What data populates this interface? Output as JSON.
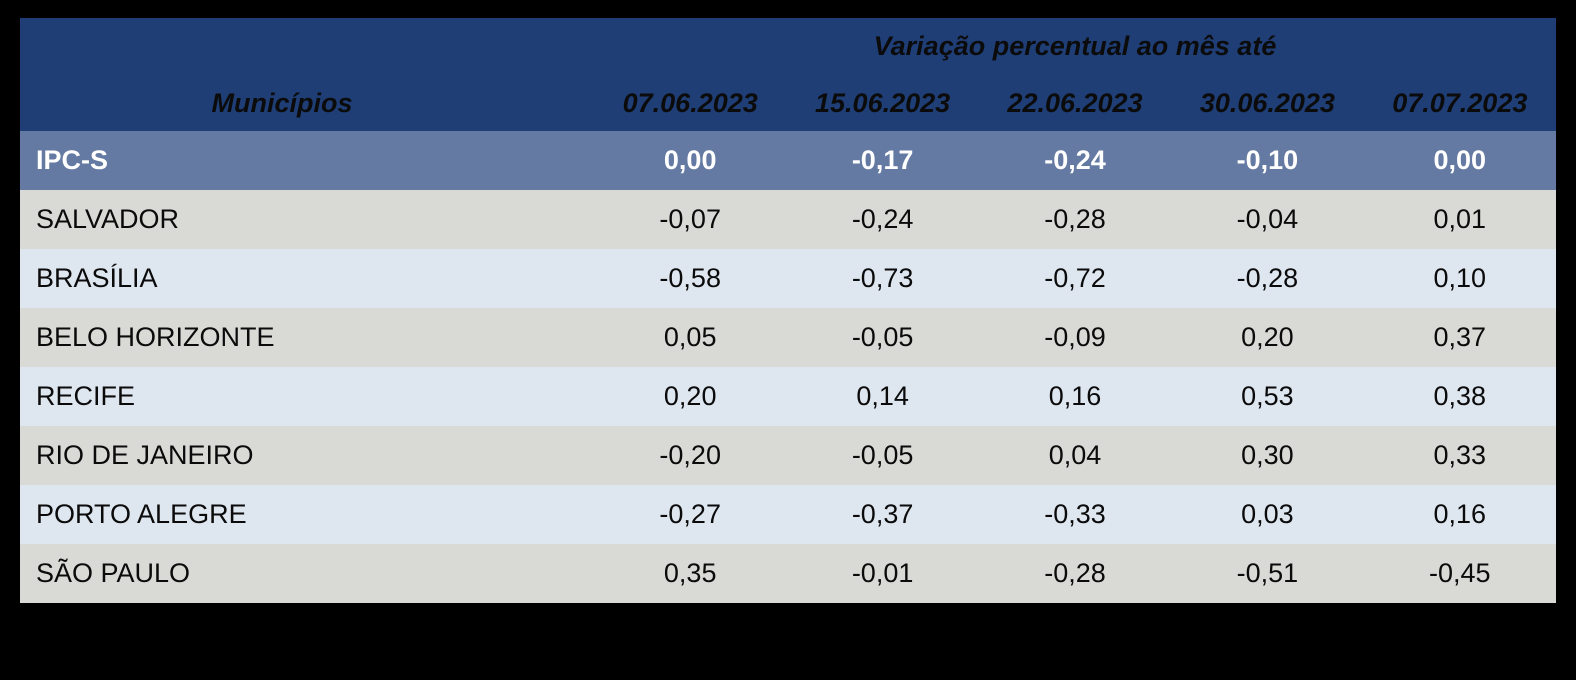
{
  "table": {
    "header": {
      "group_title": "Variação percentual ao mês até",
      "municipios_label": "Municípios",
      "date_columns": [
        "07.06.2023",
        "15.06.2023",
        "22.06.2023",
        "30.06.2023",
        "07.07.2023"
      ]
    },
    "summary_row": {
      "label": "IPC-S",
      "values": [
        "0,00",
        "-0,17",
        "-0,24",
        "-0,10",
        "0,00"
      ]
    },
    "rows": [
      {
        "label": "SALVADOR",
        "values": [
          "-0,07",
          "-0,24",
          "-0,28",
          "-0,04",
          "0,01"
        ]
      },
      {
        "label": "BRASÍLIA",
        "values": [
          "-0,58",
          "-0,73",
          "-0,72",
          "-0,28",
          "0,10"
        ]
      },
      {
        "label": "BELO HORIZONTE",
        "values": [
          "0,05",
          "-0,05",
          "-0,09",
          "0,20",
          "0,37"
        ]
      },
      {
        "label": "RECIFE",
        "values": [
          "0,20",
          "0,14",
          "0,16",
          "0,53",
          "0,38"
        ]
      },
      {
        "label": "RIO DE JANEIRO",
        "values": [
          "-0,20",
          "-0,05",
          "0,04",
          "0,30",
          "0,33"
        ]
      },
      {
        "label": "PORTO ALEGRE",
        "values": [
          "-0,27",
          "-0,37",
          "-0,33",
          "0,03",
          "0,16"
        ]
      },
      {
        "label": "SÃO PAULO",
        "values": [
          "0,35",
          "-0,01",
          "-0,28",
          "-0,51",
          "-0,45"
        ]
      }
    ],
    "colors": {
      "header_bg": "#1F3E76",
      "summary_row_bg": "#647AA3",
      "row_alt_gray": "#D9D9D6",
      "row_alt_blue": "#DEE6EF",
      "page_bg": "#000000",
      "header_text": "#FFFFFF",
      "body_text": "#0B0B0B"
    }
  },
  "chart_data": {
    "type": "table",
    "title": "Variação percentual ao mês até",
    "columns": [
      "Municípios",
      "07.06.2023",
      "15.06.2023",
      "22.06.2023",
      "30.06.2023",
      "07.07.2023"
    ],
    "rows": [
      [
        "IPC-S",
        0.0,
        -0.17,
        -0.24,
        -0.1,
        0.0
      ],
      [
        "SALVADOR",
        -0.07,
        -0.24,
        -0.28,
        -0.04,
        0.01
      ],
      [
        "BRASÍLIA",
        -0.58,
        -0.73,
        -0.72,
        -0.28,
        0.1
      ],
      [
        "BELO HORIZONTE",
        0.05,
        -0.05,
        -0.09,
        0.2,
        0.37
      ],
      [
        "RECIFE",
        0.2,
        0.14,
        0.16,
        0.53,
        0.38
      ],
      [
        "RIO DE JANEIRO",
        -0.2,
        -0.05,
        0.04,
        0.3,
        0.33
      ],
      [
        "PORTO ALEGRE",
        -0.27,
        -0.37,
        -0.33,
        0.03,
        0.16
      ],
      [
        "SÃO PAULO",
        0.35,
        -0.01,
        -0.28,
        -0.51,
        -0.45
      ]
    ],
    "notes": "Decimal comma (pt-BR). IPC-S row is the overall index highlighted in blue; remaining rows are municipalities."
  }
}
